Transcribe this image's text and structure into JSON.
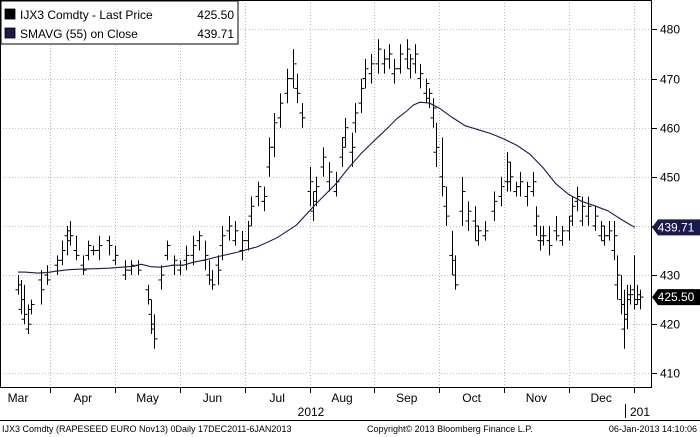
{
  "chart_data": {
    "type": "ohlc",
    "ylim": [
      407,
      486
    ],
    "yticks": [
      410,
      420,
      430,
      440,
      450,
      460,
      470,
      480
    ],
    "xlabels": [
      "Mar",
      "Apr",
      "May",
      "Jun",
      "Jul",
      "Aug",
      "Sep",
      "Oct",
      "Nov",
      "Dec"
    ],
    "year_labels": [
      "2012",
      "201"
    ],
    "legend": [
      {
        "label": "IJX3 Comdty - Last Price",
        "value": "425.50",
        "swatch": "#000000"
      },
      {
        "label": "SMAVG (55) on Close",
        "value": "439.71",
        "swatch": "#1a1a4e"
      }
    ],
    "last_price_tag": {
      "value": 425.5,
      "label": "425.50",
      "bg": "#000000",
      "fg": "#ffffff"
    },
    "sma_tag": {
      "value": 439.71,
      "label": "439.71",
      "bg": "#1a1a4e",
      "fg": "#ffffff"
    },
    "footer_left": "IJX3 Comdty (RAPESEED EURO  Nov13) 0Daily 17DEC2011-6JAN2013",
    "footer_mid": "Copyright© 2013 Bloomberg Finance L.P.",
    "footer_right": "06-Jan-2013 14:10:06",
    "colors": {
      "bars": "#000000",
      "sma": "#1a1a4e",
      "grid": "#888888",
      "frame": "#000000"
    },
    "grid": true,
    "sma": [
      [
        0.0,
        430.6
      ],
      [
        0.1,
        430.6
      ],
      [
        0.2,
        430.5
      ],
      [
        0.3,
        430.4
      ],
      [
        0.45,
        430.5
      ],
      [
        0.6,
        430.8
      ],
      [
        0.8,
        431.1
      ],
      [
        1.0,
        431.2
      ],
      [
        1.2,
        431.3
      ],
      [
        1.4,
        431.4
      ],
      [
        1.6,
        431.6
      ],
      [
        1.8,
        431.8
      ],
      [
        1.9,
        432.2
      ],
      [
        2.05,
        431.7
      ],
      [
        2.2,
        431.6
      ],
      [
        2.4,
        432.0
      ],
      [
        2.55,
        432.0
      ],
      [
        2.7,
        432.6
      ],
      [
        2.9,
        433.1
      ],
      [
        3.1,
        433.8
      ],
      [
        3.4,
        434.7
      ],
      [
        3.7,
        435.8
      ],
      [
        4.0,
        437.6
      ],
      [
        4.3,
        440.2
      ],
      [
        4.6,
        444.5
      ],
      [
        4.9,
        448.5
      ],
      [
        5.1,
        451.8
      ],
      [
        5.3,
        454.8
      ],
      [
        5.5,
        457.4
      ],
      [
        5.7,
        459.9
      ],
      [
        5.85,
        461.9
      ],
      [
        6.0,
        463.4
      ],
      [
        6.1,
        464.6
      ],
      [
        6.2,
        465.2
      ],
      [
        6.35,
        465.0
      ],
      [
        6.5,
        464.0
      ],
      [
        6.7,
        462.1
      ],
      [
        6.9,
        460.4
      ],
      [
        7.1,
        459.6
      ],
      [
        7.3,
        458.8
      ],
      [
        7.5,
        457.7
      ],
      [
        7.7,
        456.4
      ],
      [
        7.9,
        454.6
      ],
      [
        8.1,
        451.9
      ],
      [
        8.3,
        448.6
      ],
      [
        8.5,
        446.4
      ],
      [
        8.7,
        445.0
      ],
      [
        8.9,
        444.1
      ],
      [
        9.1,
        443.1
      ],
      [
        9.3,
        441.4
      ],
      [
        9.45,
        440.2
      ],
      [
        9.52,
        439.71
      ]
    ],
    "bars": [
      [
        0.0,
        430,
        426,
        427,
        428
      ],
      [
        0.05,
        429,
        422,
        423,
        425
      ],
      [
        0.1,
        428,
        420,
        421,
        422
      ],
      [
        0.15,
        424,
        418,
        419,
        420
      ],
      [
        0.2,
        425,
        422,
        423,
        424
      ],
      [
        0.35,
        431,
        424,
        429,
        427
      ],
      [
        0.45,
        432,
        428,
        430,
        429
      ],
      [
        0.6,
        434,
        430,
        432,
        433
      ],
      [
        0.68,
        437,
        432,
        433,
        435
      ],
      [
        0.75,
        440,
        434,
        438,
        437
      ],
      [
        0.8,
        441,
        436,
        439,
        438
      ],
      [
        0.9,
        438,
        433,
        435,
        434
      ],
      [
        1.0,
        434,
        430,
        432,
        431
      ],
      [
        1.08,
        437,
        433,
        434,
        436
      ],
      [
        1.15,
        436,
        434,
        435,
        435
      ],
      [
        1.25,
        438,
        433,
        435,
        436
      ],
      [
        1.4,
        438,
        434,
        437,
        436
      ],
      [
        1.5,
        436,
        432,
        433,
        434
      ],
      [
        1.65,
        433,
        429,
        430,
        431
      ],
      [
        1.75,
        433,
        430,
        431,
        432
      ],
      [
        1.85,
        433,
        430,
        432,
        431
      ],
      [
        2.0,
        428,
        424,
        427,
        425
      ],
      [
        2.05,
        425,
        418,
        422,
        420
      ],
      [
        2.1,
        422,
        415,
        419,
        417
      ],
      [
        2.2,
        432,
        427,
        429,
        430
      ],
      [
        2.3,
        437,
        433,
        434,
        436
      ],
      [
        2.4,
        434,
        430,
        432,
        433
      ],
      [
        2.5,
        433,
        430,
        431,
        432
      ],
      [
        2.6,
        436,
        431,
        433,
        434
      ],
      [
        2.7,
        438,
        432,
        434,
        436
      ],
      [
        2.8,
        439,
        435,
        437,
        438
      ],
      [
        2.88,
        437,
        431,
        433,
        434
      ],
      [
        2.95,
        433,
        428,
        430,
        429
      ],
      [
        3.0,
        431,
        427,
        429,
        428
      ],
      [
        3.08,
        434,
        428,
        432,
        431
      ],
      [
        3.15,
        440,
        433,
        436,
        438
      ],
      [
        3.25,
        442,
        437,
        439,
        440
      ],
      [
        3.35,
        441,
        436,
        437,
        439
      ],
      [
        3.45,
        439,
        433,
        435,
        437
      ],
      [
        3.55,
        441,
        435,
        437,
        440
      ],
      [
        3.6,
        446,
        440,
        442,
        444
      ],
      [
        3.7,
        449,
        444,
        446,
        448
      ],
      [
        3.8,
        448,
        443,
        445,
        446
      ],
      [
        3.88,
        458,
        450,
        452,
        456
      ],
      [
        3.95,
        463,
        454,
        456,
        461
      ],
      [
        4.05,
        467,
        460,
        462,
        465
      ],
      [
        4.15,
        472,
        465,
        467,
        470
      ],
      [
        4.25,
        476,
        468,
        470,
        473
      ],
      [
        4.3,
        471,
        465,
        468,
        467
      ],
      [
        4.38,
        465,
        460,
        463,
        462
      ],
      [
        4.5,
        452,
        444,
        447,
        449
      ],
      [
        4.55,
        447,
        441,
        443,
        445
      ],
      [
        4.6,
        450,
        444,
        447,
        448
      ],
      [
        4.7,
        456,
        450,
        452,
        454
      ],
      [
        4.8,
        453,
        447,
        449,
        451
      ],
      [
        4.9,
        451,
        446,
        447,
        449
      ],
      [
        5.0,
        458,
        452,
        454,
        456
      ],
      [
        5.05,
        462,
        456,
        458,
        460
      ],
      [
        5.15,
        459,
        452,
        455,
        456
      ],
      [
        5.2,
        465,
        459,
        461,
        463
      ],
      [
        5.3,
        470,
        463,
        465,
        468
      ],
      [
        5.35,
        474,
        468,
        470,
        472
      ],
      [
        5.45,
        475,
        469,
        471,
        473
      ],
      [
        5.55,
        478,
        471,
        473,
        476
      ],
      [
        5.65,
        476,
        471,
        473,
        474
      ],
      [
        5.72,
        477,
        472,
        474,
        475
      ],
      [
        5.8,
        474,
        469,
        471,
        472
      ],
      [
        5.9,
        477,
        471,
        472,
        475
      ],
      [
        6.0,
        478,
        472,
        474,
        476
      ],
      [
        6.05,
        475,
        470,
        472,
        474
      ],
      [
        6.12,
        477,
        471,
        473,
        475
      ],
      [
        6.2,
        473,
        468,
        470,
        471
      ],
      [
        6.3,
        470,
        465,
        467,
        469
      ],
      [
        6.35,
        468,
        464,
        466,
        467
      ],
      [
        6.4,
        466,
        460,
        462,
        464
      ],
      [
        6.45,
        461,
        452,
        455,
        456
      ],
      [
        6.55,
        458,
        446,
        450,
        448
      ],
      [
        6.6,
        448,
        440,
        444,
        442
      ],
      [
        6.7,
        439,
        430,
        434,
        433
      ],
      [
        6.75,
        434,
        427,
        430,
        428
      ],
      [
        6.85,
        450,
        440,
        443,
        447
      ],
      [
        6.95,
        445,
        439,
        441,
        443
      ],
      [
        7.05,
        444,
        437,
        441,
        440
      ],
      [
        7.1,
        440,
        436,
        437,
        439
      ],
      [
        7.2,
        441,
        437,
        438,
        439
      ],
      [
        7.35,
        447,
        441,
        443,
        445
      ],
      [
        7.45,
        450,
        444,
        446,
        448
      ],
      [
        7.55,
        455,
        447,
        449,
        453
      ],
      [
        7.6,
        453,
        447,
        449,
        450
      ],
      [
        7.68,
        449,
        446,
        447,
        448
      ],
      [
        7.75,
        451,
        446,
        448,
        449
      ],
      [
        7.85,
        449,
        444,
        446,
        448
      ],
      [
        7.95,
        451,
        446,
        447,
        449
      ],
      [
        8.0,
        444,
        438,
        440,
        442
      ],
      [
        8.05,
        440,
        435,
        437,
        438
      ],
      [
        8.1,
        440,
        436,
        437,
        438
      ],
      [
        8.2,
        440,
        434,
        437,
        436
      ],
      [
        8.3,
        442,
        437,
        439,
        438
      ],
      [
        8.4,
        440,
        436,
        437,
        439
      ],
      [
        8.5,
        442,
        437,
        439,
        441
      ],
      [
        8.55,
        446,
        440,
        442,
        444
      ],
      [
        8.62,
        448,
        443,
        445,
        446
      ],
      [
        8.7,
        446,
        440,
        441,
        444
      ],
      [
        8.8,
        446,
        440,
        442,
        444
      ],
      [
        8.9,
        444,
        439,
        440,
        442
      ],
      [
        9.0,
        441,
        437,
        438,
        440
      ],
      [
        9.05,
        440,
        436,
        437,
        438
      ],
      [
        9.12,
        441,
        437,
        438,
        439
      ],
      [
        9.2,
        441,
        433,
        435,
        438
      ],
      [
        9.25,
        434,
        425,
        428,
        430
      ],
      [
        9.3,
        430,
        422,
        425,
        424
      ],
      [
        9.35,
        427,
        415,
        419,
        421
      ],
      [
        9.4,
        428,
        419,
        422,
        426
      ],
      [
        9.45,
        428,
        424,
        425,
        426
      ],
      [
        9.5,
        434,
        423,
        427,
        424
      ],
      [
        9.55,
        428,
        424,
        425,
        426
      ],
      [
        9.6,
        427,
        423,
        425,
        425.5
      ]
    ]
  }
}
